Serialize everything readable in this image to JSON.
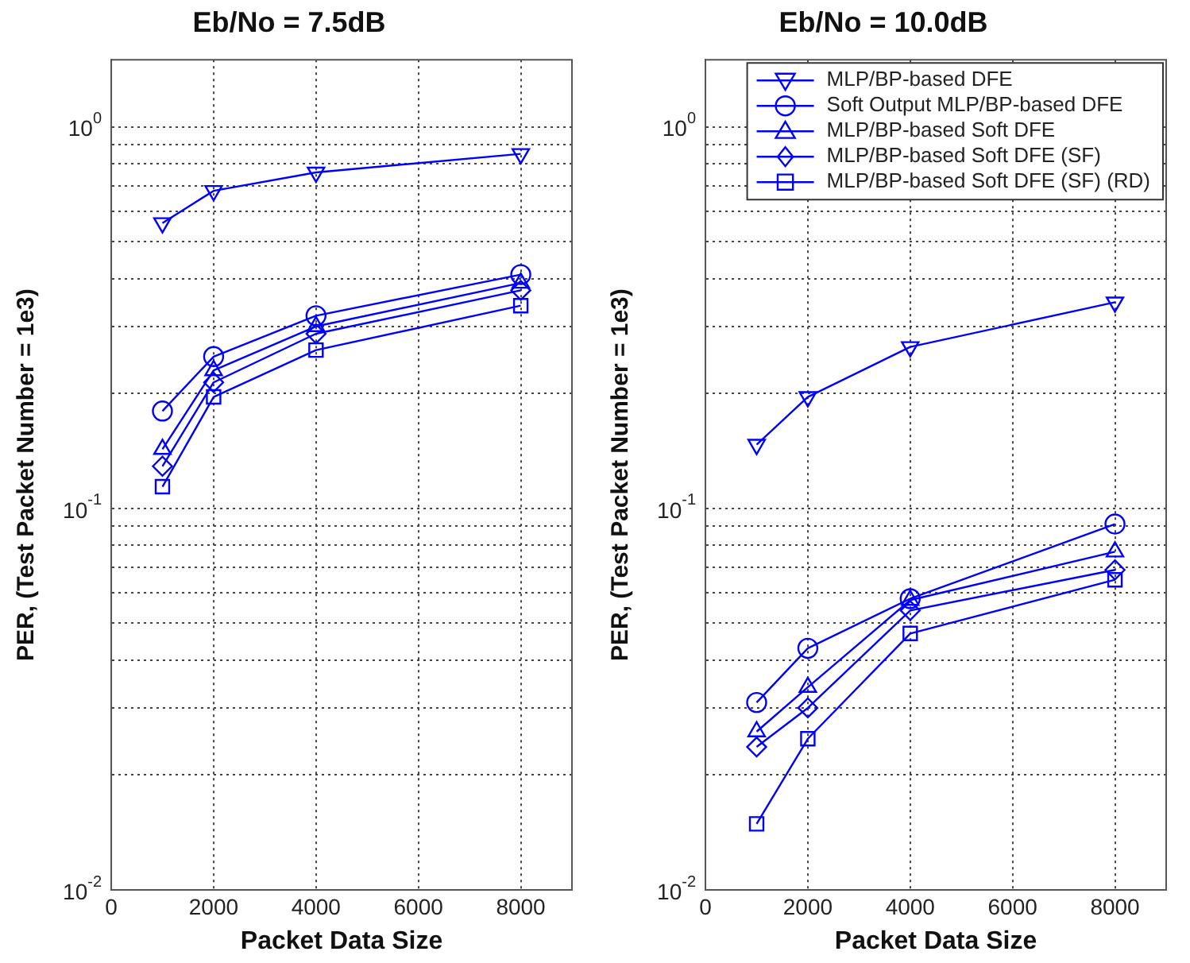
{
  "chart_data": [
    {
      "type": "line",
      "title": "Eb/No = 7.5dB",
      "xlabel": "Packet Data Size",
      "ylabel": "PER, (Test Packet Number = 1e3)",
      "x": [
        1000,
        2000,
        4000,
        8000
      ],
      "log": "y",
      "grid": true,
      "line_style": "solid",
      "xlim": [
        0,
        9000
      ],
      "xticks": [
        0,
        2000,
        4000,
        6000,
        8000
      ],
      "ylim": [
        0.01,
        1.5
      ],
      "yticks": [
        {
          "value": 0.01,
          "label": "10$^{-2}$"
        },
        {
          "value": 0.02,
          "label": null
        },
        {
          "value": 0.03,
          "label": null
        },
        {
          "value": 0.04,
          "label": null
        },
        {
          "value": 0.05,
          "label": null
        },
        {
          "value": 0.06,
          "label": null
        },
        {
          "value": 0.07,
          "label": null
        },
        {
          "value": 0.08,
          "label": null
        },
        {
          "value": 0.09,
          "label": null
        },
        {
          "value": 0.1,
          "label": "10$^{-1}$"
        },
        {
          "value": 0.2,
          "label": null
        },
        {
          "value": 0.3,
          "label": null
        },
        {
          "value": 0.4,
          "label": null
        },
        {
          "value": 0.5,
          "label": null
        },
        {
          "value": 0.6,
          "label": null
        },
        {
          "value": 0.7,
          "label": null
        },
        {
          "value": 0.8,
          "label": null
        },
        {
          "value": 0.9,
          "label": null
        },
        {
          "value": 1,
          "label": "10$^{0}$"
        }
      ],
      "series": [
        {
          "color": "#0000ff",
          "marker": "triangle-down",
          "values": [
            0.56,
            0.68,
            0.76,
            0.85
          ]
        },
        {
          "color": "#0000ff",
          "marker": "circle",
          "values": [
            0.18,
            0.25,
            0.32,
            0.41
          ]
        },
        {
          "color": "#0000ff",
          "marker": "triangle",
          "values": [
            0.143,
            0.23,
            0.3,
            0.39
          ]
        },
        {
          "color": "#0000ff",
          "marker": "diamond",
          "values": [
            0.129,
            0.214,
            0.287,
            0.373
          ]
        },
        {
          "color": "#0000ff",
          "marker": "square",
          "values": [
            0.114,
            0.196,
            0.26,
            0.34
          ]
        }
      ]
    },
    {
      "type": "line",
      "title": "Eb/No = 10.0dB",
      "xlabel": "Packet Data Size",
      "ylabel": "PER, (Test Packet Number = 1e3)",
      "x": [
        1000,
        2000,
        4000,
        8000
      ],
      "log": "y",
      "grid": true,
      "line_style": "solid",
      "legend": "top right",
      "xlim": [
        0,
        9000
      ],
      "xticks": [
        0,
        2000,
        4000,
        6000,
        8000
      ],
      "ylim": [
        0.01,
        1.5
      ],
      "yticks": [
        {
          "value": 0.01,
          "label": "10$^{-2}$"
        },
        {
          "value": 0.02,
          "label": null
        },
        {
          "value": 0.03,
          "label": null
        },
        {
          "value": 0.04,
          "label": null
        },
        {
          "value": 0.05,
          "label": null
        },
        {
          "value": 0.06,
          "label": null
        },
        {
          "value": 0.07,
          "label": null
        },
        {
          "value": 0.08,
          "label": null
        },
        {
          "value": 0.09,
          "label": null
        },
        {
          "value": 0.1,
          "label": "10$^{-1}$"
        },
        {
          "value": 0.2,
          "label": null
        },
        {
          "value": 0.3,
          "label": null
        },
        {
          "value": 0.4,
          "label": null
        },
        {
          "value": 0.5,
          "label": null
        },
        {
          "value": 0.6,
          "label": null
        },
        {
          "value": 0.7,
          "label": null
        },
        {
          "value": 0.8,
          "label": null
        },
        {
          "value": 0.9,
          "label": null
        },
        {
          "value": 1,
          "label": "10$^{0}$"
        }
      ],
      "series": [
        {
          "name": "MLP/BP-based DFE",
          "color": "#0000ff",
          "marker": "triangle-down",
          "values": [
            0.147,
            0.196,
            0.265,
            0.347
          ]
        },
        {
          "name": "Soft Output MLP/BP-based DFE",
          "color": "#0000ff",
          "marker": "circle",
          "values": [
            0.031,
            0.043,
            0.058,
            0.091
          ]
        },
        {
          "name": "MLP/BP-based Soft DFE",
          "color": "#0000ff",
          "marker": "triangle",
          "values": [
            0.026,
            0.034,
            0.0575,
            0.077
          ]
        },
        {
          "name": "MLP/BP-based Soft DFE (SF)",
          "color": "#0000ff",
          "marker": "diamond",
          "values": [
            0.0237,
            0.03,
            0.054,
            0.069
          ]
        },
        {
          "name": "MLP/BP-based Soft DFE (SF) (RD)",
          "color": "#0000ff",
          "marker": "square",
          "values": [
            0.0149,
            0.0249,
            0.047,
            0.065
          ]
        }
      ]
    }
  ]
}
